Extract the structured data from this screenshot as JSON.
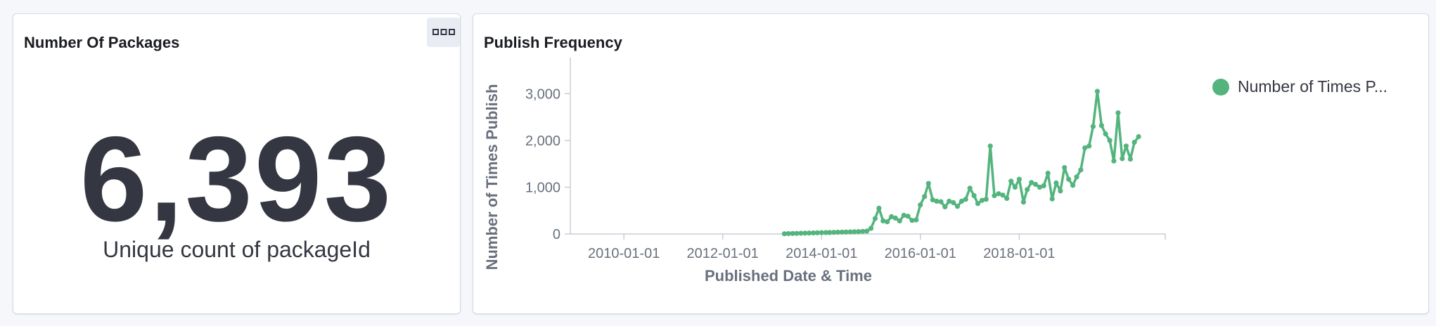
{
  "left_panel": {
    "title": "Number Of Packages",
    "options_icon": "ellipsis-icon",
    "metric_value": "6,393",
    "metric_label": "Unique count of packageId",
    "text_color": "#343741"
  },
  "right_panel": {
    "title": "Publish Frequency"
  },
  "chart_data": {
    "type": "line",
    "xlabel": "Published Date & Time",
    "ylabel": "Number of Times Publish",
    "x_ticks": [
      "2010-01-01",
      "2012-01-01",
      "2014-01-01",
      "2016-01-01",
      "2018-01-01"
    ],
    "y_ticks": [
      "0",
      "1,000",
      "2,000",
      "3,000"
    ],
    "xlim": [
      "2008-12-01",
      "2020-12-15"
    ],
    "ylim": [
      0,
      3500
    ],
    "grid": false,
    "legend_position": "top-right",
    "series": [
      {
        "name": "Number of Times P...",
        "color": "#54b47e",
        "x": [
          "2013-04-01",
          "2013-05-01",
          "2013-06-01",
          "2013-07-01",
          "2013-08-01",
          "2013-09-01",
          "2013-10-01",
          "2013-11-01",
          "2013-12-01",
          "2014-01-01",
          "2014-02-01",
          "2014-03-01",
          "2014-04-01",
          "2014-05-01",
          "2014-06-01",
          "2014-07-01",
          "2014-08-01",
          "2014-09-01",
          "2014-10-01",
          "2014-11-01",
          "2014-12-01",
          "2015-01-01",
          "2015-02-01",
          "2015-03-01",
          "2015-04-01",
          "2015-05-01",
          "2015-06-01",
          "2015-07-01",
          "2015-08-01",
          "2015-09-01",
          "2015-10-01",
          "2015-11-01",
          "2015-12-01",
          "2016-01-01",
          "2016-02-01",
          "2016-03-01",
          "2016-04-01",
          "2016-05-01",
          "2016-06-01",
          "2016-07-01",
          "2016-08-01",
          "2016-09-01",
          "2016-10-01",
          "2016-11-01",
          "2016-12-01",
          "2017-01-01",
          "2017-02-01",
          "2017-03-01",
          "2017-04-01",
          "2017-05-01",
          "2017-06-01",
          "2017-07-01",
          "2017-08-01",
          "2017-09-01",
          "2017-10-01",
          "2017-11-01",
          "2017-12-01",
          "2018-01-01",
          "2018-02-01",
          "2018-03-01",
          "2018-04-01",
          "2018-05-01",
          "2018-06-01",
          "2018-07-01",
          "2018-08-01",
          "2018-09-01",
          "2018-10-01",
          "2018-11-01",
          "2018-12-01",
          "2019-01-01",
          "2019-02-01",
          "2019-03-01",
          "2019-04-01",
          "2019-05-01",
          "2019-06-01",
          "2019-07-01",
          "2019-08-01",
          "2019-09-01",
          "2019-10-01",
          "2019-11-01",
          "2019-12-01",
          "2020-01-01",
          "2020-02-01",
          "2020-03-01",
          "2020-04-01",
          "2020-05-01",
          "2020-06-01"
        ],
        "values": [
          5,
          8,
          10,
          12,
          15,
          18,
          20,
          22,
          25,
          28,
          30,
          32,
          35,
          38,
          40,
          42,
          45,
          48,
          50,
          55,
          60,
          120,
          330,
          550,
          280,
          260,
          370,
          340,
          280,
          400,
          380,
          290,
          300,
          620,
          800,
          1080,
          730,
          700,
          690,
          580,
          700,
          670,
          590,
          700,
          740,
          980,
          820,
          650,
          720,
          740,
          1880,
          820,
          860,
          830,
          760,
          1130,
          1000,
          1170,
          680,
          950,
          1100,
          1060,
          1000,
          1030,
          1300,
          750,
          1090,
          920,
          1420,
          1170,
          1040,
          1220,
          1370,
          1840,
          1880,
          2300,
          3050,
          2320,
          2140,
          2000,
          1560,
          2590,
          1610,
          1880,
          1600,
          1960,
          2080
        ]
      }
    ]
  }
}
